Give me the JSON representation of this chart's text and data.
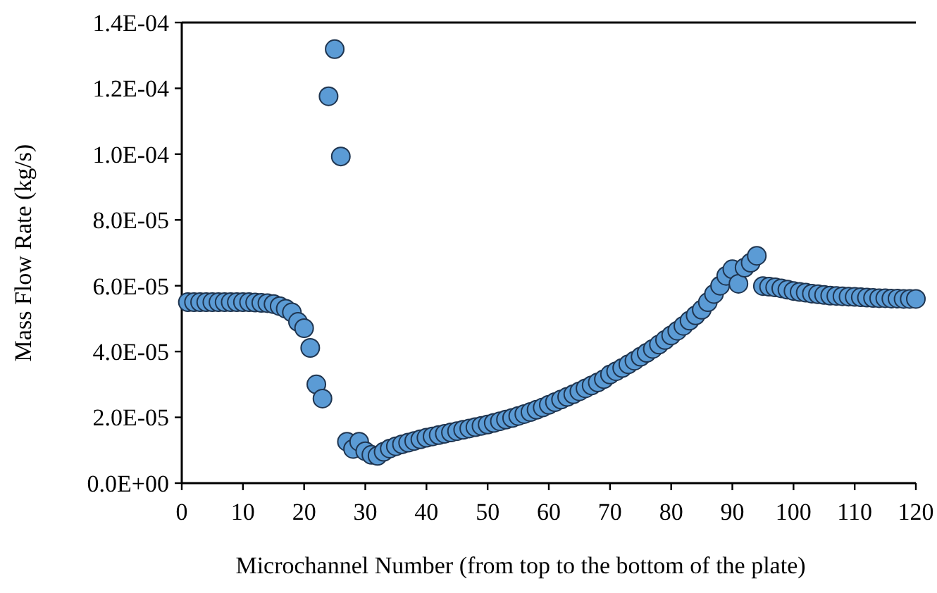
{
  "chart_data": {
    "type": "scatter",
    "xlabel": "Microchannel Number (from top to the bottom of the plate)",
    "ylabel": "Mass Flow Rate (kg/s)",
    "xlim": [
      0,
      120
    ],
    "xticks": [
      0,
      10,
      20,
      30,
      40,
      50,
      60,
      70,
      80,
      90,
      100,
      110,
      120
    ],
    "ylim": [
      0,
      0.00014
    ],
    "yticks": [
      {
        "value": 0,
        "label": "0.0E+00"
      },
      {
        "value": 2e-05,
        "label": "2.0E-05"
      },
      {
        "value": 4e-05,
        "label": "4.0E-05"
      },
      {
        "value": 6e-05,
        "label": "6.0E-05"
      },
      {
        "value": 8e-05,
        "label": "8.0E-05"
      },
      {
        "value": 0.0001,
        "label": "1.0E-04"
      },
      {
        "value": 0.00012,
        "label": "1.2E-04"
      },
      {
        "value": 0.00014,
        "label": "1.4E-04"
      }
    ],
    "grid": false,
    "marker": "circle",
    "series": [
      {
        "color": "#5b9bd5",
        "x": [
          1,
          2,
          3,
          4,
          5,
          6,
          7,
          8,
          9,
          10,
          11,
          12,
          13,
          14,
          15,
          16,
          17,
          18,
          19,
          20,
          21,
          22,
          23,
          24,
          25,
          26,
          27,
          28,
          29,
          30,
          31,
          32,
          33,
          34,
          35,
          36,
          37,
          38,
          39,
          40,
          41,
          42,
          43,
          44,
          45,
          46,
          47,
          48,
          49,
          50,
          51,
          52,
          53,
          54,
          55,
          56,
          57,
          58,
          59,
          60,
          61,
          62,
          63,
          64,
          65,
          66,
          67,
          68,
          69,
          70,
          71,
          72,
          73,
          74,
          75,
          76,
          77,
          78,
          79,
          80,
          81,
          82,
          83,
          84,
          85,
          86,
          87,
          88,
          89,
          90,
          91,
          92,
          93,
          94,
          95,
          96,
          97,
          98,
          99,
          100,
          101,
          102,
          103,
          104,
          105,
          106,
          107,
          108,
          109,
          110,
          111,
          112,
          113,
          114,
          115,
          116,
          117,
          118,
          119,
          120
        ],
        "values": [
          5.5e-05,
          5.5e-05,
          5.5e-05,
          5.5e-05,
          5.5e-05,
          5.5e-05,
          5.5e-05,
          5.5e-05,
          5.5e-05,
          5.5e-05,
          5.5e-05,
          5.49e-05,
          5.48e-05,
          5.47e-05,
          5.44e-05,
          5.38e-05,
          5.3e-05,
          5.19e-05,
          4.9e-05,
          4.71e-05,
          4.11e-05,
          3e-05,
          2.57e-05,
          0.0001176,
          0.0001319,
          9.93e-05,
          1.26e-05,
          1.04e-05,
          1.26e-05,
          9.7e-06,
          8.6e-06,
          8.3e-06,
          9.5e-06,
          1.05e-05,
          1.12e-05,
          1.18e-05,
          1.23e-05,
          1.28e-05,
          1.33e-05,
          1.38e-05,
          1.42e-05,
          1.46e-05,
          1.5e-05,
          1.54e-05,
          1.58e-05,
          1.62e-05,
          1.66e-05,
          1.7e-05,
          1.74e-05,
          1.78e-05,
          1.83e-05,
          1.88e-05,
          1.93e-05,
          1.98e-05,
          2.04e-05,
          2.1e-05,
          2.16e-05,
          2.23e-05,
          2.3e-05,
          2.38e-05,
          2.46e-05,
          2.54e-05,
          2.62e-05,
          2.7e-05,
          2.79e-05,
          2.88e-05,
          2.97e-05,
          3.06e-05,
          3.16e-05,
          3.3e-05,
          3.4e-05,
          3.5e-05,
          3.61e-05,
          3.72e-05,
          3.84e-05,
          3.96e-05,
          4.08e-05,
          4.21e-05,
          4.35e-05,
          4.49e-05,
          4.63e-05,
          4.78e-05,
          4.94e-05,
          5.1e-05,
          5.27e-05,
          5.5e-05,
          5.75e-05,
          6e-05,
          6.3e-05,
          6.5e-05,
          6.06e-05,
          6.55e-05,
          6.7e-05,
          6.91e-05,
          5.99e-05,
          5.97e-05,
          5.95e-05,
          5.92e-05,
          5.88e-05,
          5.84e-05,
          5.81e-05,
          5.79e-05,
          5.76e-05,
          5.74e-05,
          5.72e-05,
          5.7e-05,
          5.69e-05,
          5.68e-05,
          5.67e-05,
          5.66e-05,
          5.65e-05,
          5.64e-05,
          5.63e-05,
          5.62e-05,
          5.62e-05,
          5.61e-05,
          5.61e-05,
          5.6e-05,
          5.6e-05,
          5.6e-05
        ]
      }
    ]
  }
}
